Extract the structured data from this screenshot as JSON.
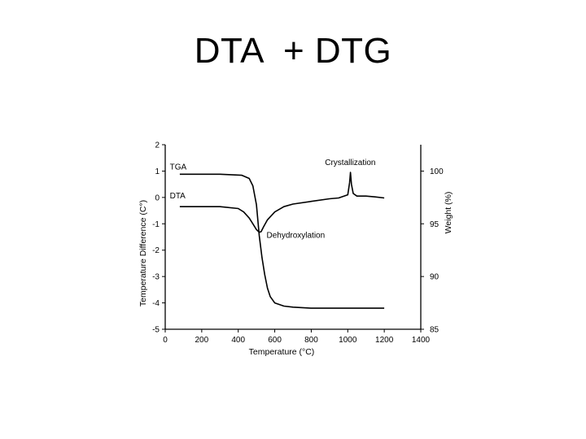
{
  "slide": {
    "title": "DTA  + DTG"
  },
  "chart_data": {
    "type": "line",
    "xlabel": "Temperature (°C)",
    "ylabel": "Temperature Difference (C°)",
    "y2label": "Weight (%)",
    "xlim": [
      0,
      1400
    ],
    "ylim": [
      -5,
      2
    ],
    "y2lim": [
      85,
      102.5
    ],
    "x_ticks": [
      0,
      200,
      400,
      600,
      800,
      1000,
      1200,
      1400
    ],
    "y_ticks": [
      2,
      1,
      0,
      -1,
      -2,
      -3,
      -4,
      -5
    ],
    "y2_ticks": [
      100,
      95,
      90,
      85
    ],
    "grid": false,
    "series": [
      {
        "name": "TGA",
        "axis": "right",
        "x": [
          80,
          300,
          420,
          460,
          480,
          500,
          515,
          530,
          545,
          560,
          575,
          600,
          650,
          700,
          800,
          1000,
          1200
        ],
        "y": [
          99.7,
          99.7,
          99.6,
          99.3,
          98.6,
          96.8,
          93.9,
          91.8,
          90.2,
          88.9,
          88.1,
          87.5,
          87.2,
          87.1,
          87.0,
          87.0,
          87.0
        ]
      },
      {
        "name": "DTA",
        "axis": "left",
        "x": [
          80,
          300,
          400,
          430,
          460,
          480,
          500,
          515,
          525,
          540,
          560,
          600,
          650,
          700,
          800,
          900,
          950,
          1000,
          1010,
          1015,
          1020,
          1030,
          1050,
          1100,
          1150,
          1200
        ],
        "y": [
          -0.35,
          -0.35,
          -0.42,
          -0.55,
          -0.78,
          -1.0,
          -1.22,
          -1.32,
          -1.3,
          -1.1,
          -0.85,
          -0.55,
          -0.35,
          -0.25,
          -0.15,
          -0.05,
          -0.02,
          0.1,
          0.55,
          0.95,
          0.5,
          0.15,
          0.05,
          0.05,
          0.02,
          -0.02
        ]
      }
    ],
    "annotations": [
      {
        "text": "TGA"
      },
      {
        "text": "DTA"
      },
      {
        "text": "Crystallization"
      },
      {
        "text": "Dehydroxylation"
      }
    ]
  }
}
